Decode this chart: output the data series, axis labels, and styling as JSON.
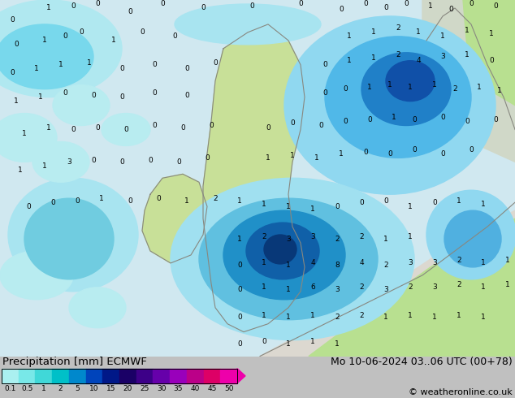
{
  "title_left": "Precipitation [mm] ECMWF",
  "title_right": "Mo 10-06-2024 03..06 UTC (00+78)",
  "credit": "© weatheronline.co.uk",
  "colorbar_levels": [
    0.1,
    0.5,
    1,
    2,
    5,
    10,
    15,
    20,
    25,
    30,
    35,
    40,
    45,
    50
  ],
  "colorbar_colors": [
    "#aaf0f0",
    "#78e8e8",
    "#40d8d8",
    "#00c0c8",
    "#0088cc",
    "#0044bb",
    "#001888",
    "#1a0066",
    "#3d0088",
    "#6600aa",
    "#9900bb",
    "#bb0088",
    "#dd0066",
    "#ee00aa"
  ],
  "map_bg": "#e8e4e0",
  "ocean_color": "#c8e8f0",
  "land_color": "#c8e8a8",
  "land_green": "#b8e090",
  "precip_light": "#b0e8ee",
  "precip_med": "#60ccdd",
  "precip_dark": "#2288bb",
  "precip_deep": "#114488",
  "bottom_bg": "#ffffff",
  "fig_bg": "#c0c0c0",
  "label_fontsize": 8,
  "title_fontsize": 9.5,
  "credit_fontsize": 8
}
